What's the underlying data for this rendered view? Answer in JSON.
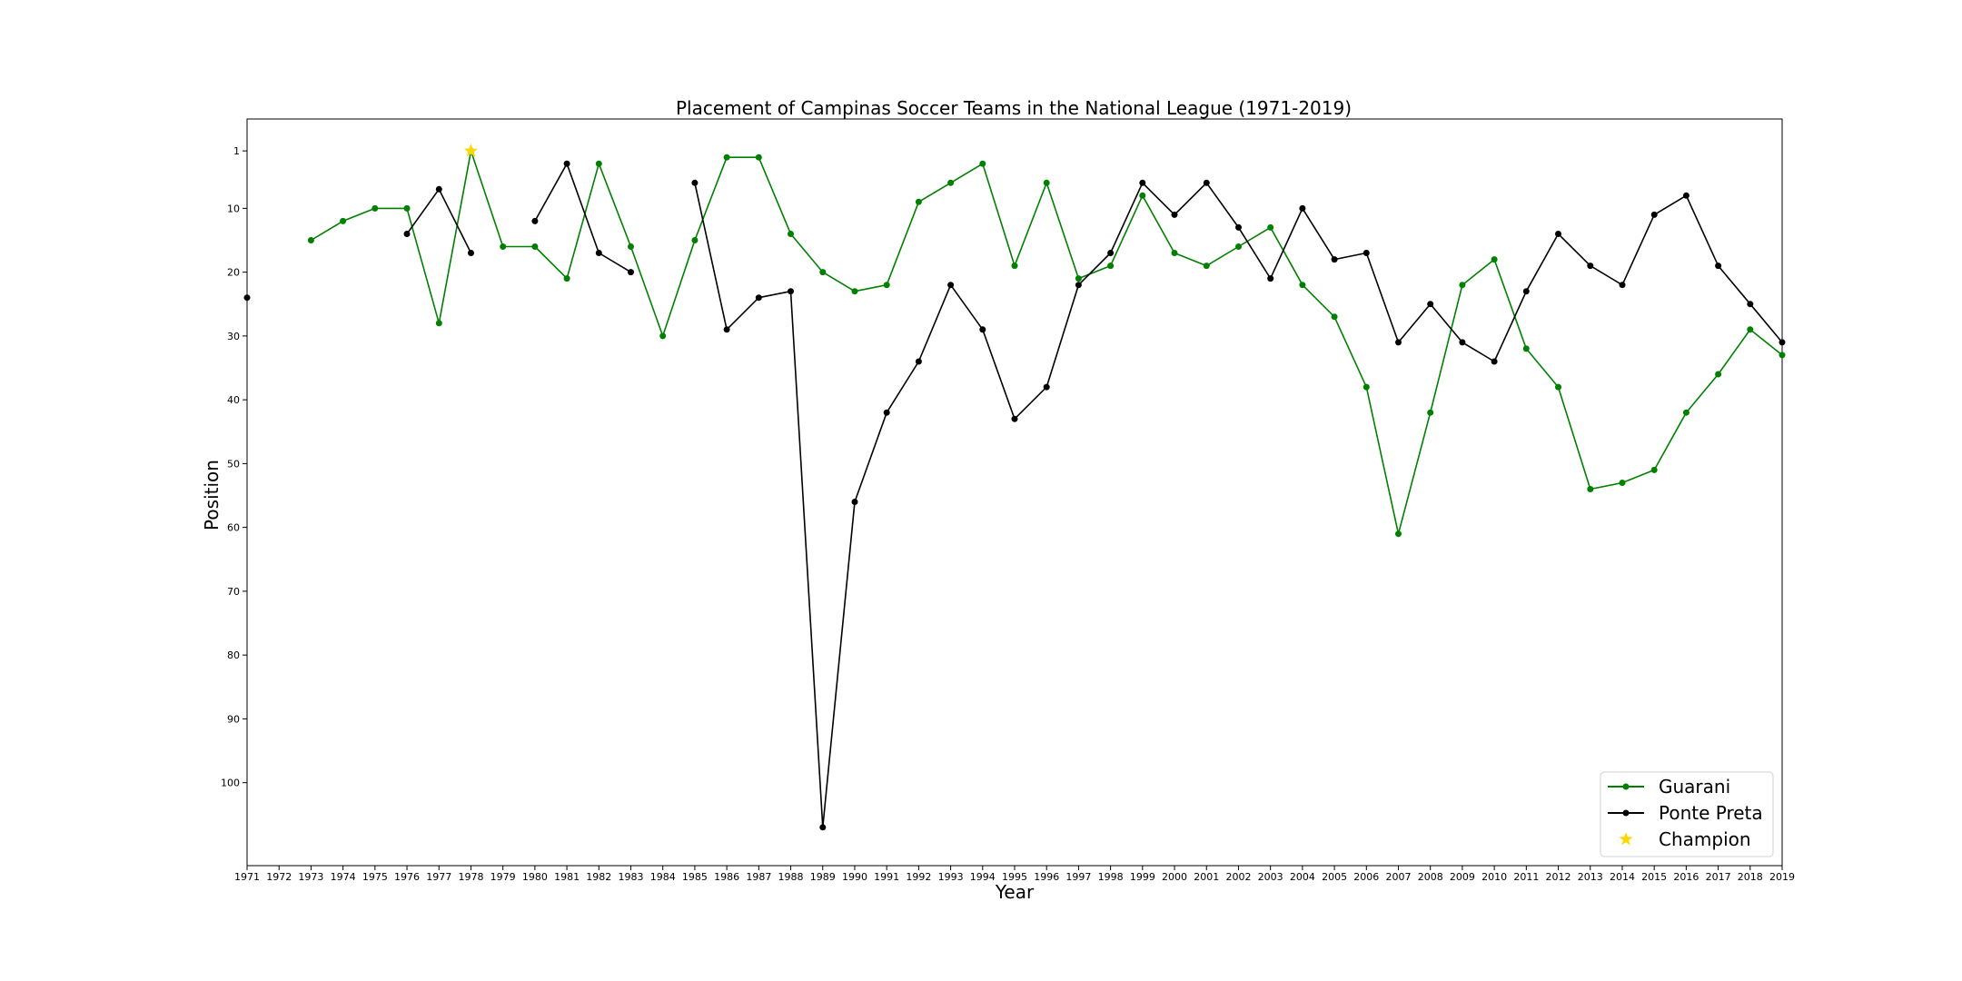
{
  "chart_data": {
    "type": "line",
    "title": "Placement of Campinas Soccer Teams in the National League (1971-2019)",
    "xlabel": "Year",
    "ylabel": "Position",
    "x": [
      1971,
      1972,
      1973,
      1974,
      1975,
      1976,
      1977,
      1978,
      1979,
      1980,
      1981,
      1982,
      1983,
      1984,
      1985,
      1986,
      1987,
      1988,
      1989,
      1990,
      1991,
      1992,
      1993,
      1994,
      1995,
      1996,
      1997,
      1998,
      1999,
      2000,
      2001,
      2002,
      2003,
      2004,
      2005,
      2006,
      2007,
      2008,
      2009,
      2010,
      2011,
      2012,
      2013,
      2014,
      2015,
      2016,
      2017,
      2018,
      2019
    ],
    "xticks": [
      "1971",
      "1972",
      "1973",
      "1974",
      "1975",
      "1976",
      "1977",
      "1978",
      "1979",
      "1980",
      "1981",
      "1982",
      "1983",
      "1984",
      "1985",
      "1986",
      "1987",
      "1988",
      "1989",
      "1990",
      "1991",
      "1992",
      "1993",
      "1994",
      "1995",
      "1996",
      "1997",
      "1998",
      "1999",
      "2000",
      "2001",
      "2002",
      "2003",
      "2004",
      "2005",
      "2006",
      "2007",
      "2008",
      "2009",
      "2010",
      "2011",
      "2012",
      "2013",
      "2014",
      "2015",
      "2016",
      "2017",
      "2018",
      "2019"
    ],
    "yticks": [
      "1",
      "10",
      "20",
      "30",
      "40",
      "50",
      "60",
      "70",
      "80",
      "90",
      "100"
    ],
    "ytick_values": [
      1,
      10,
      20,
      30,
      40,
      50,
      60,
      70,
      80,
      90,
      100
    ],
    "ylim": [
      113,
      -4
    ],
    "yaxis_inverted": true,
    "grid": false,
    "legend_position": "lower-right",
    "series": [
      {
        "name": "Guarani",
        "color": "#008000",
        "values": [
          null,
          null,
          15,
          12,
          10,
          10,
          28,
          1,
          16,
          16,
          21,
          3,
          16,
          30,
          15,
          2,
          2,
          14,
          20,
          23,
          22,
          9,
          6,
          3,
          19,
          6,
          21,
          19,
          8,
          17,
          19,
          16,
          13,
          22,
          27,
          38,
          61,
          42,
          22,
          18,
          32,
          38,
          54,
          53,
          51,
          42,
          36,
          29,
          33
        ]
      },
      {
        "name": "Ponte Preta",
        "color": "#000000",
        "values": [
          24,
          null,
          null,
          null,
          null,
          14,
          7,
          17,
          null,
          12,
          3,
          17,
          20,
          null,
          6,
          29,
          24,
          23,
          107,
          56,
          42,
          34,
          22,
          29,
          43,
          38,
          22,
          17,
          6,
          11,
          6,
          13,
          21,
          10,
          18,
          17,
          31,
          25,
          31,
          34,
          23,
          14,
          19,
          22,
          11,
          8,
          19,
          25,
          31
        ]
      }
    ],
    "annotations": [
      {
        "name": "Champion",
        "x": 1978,
        "y": 1,
        "marker": "star",
        "color": "#FFD700"
      }
    ]
  }
}
